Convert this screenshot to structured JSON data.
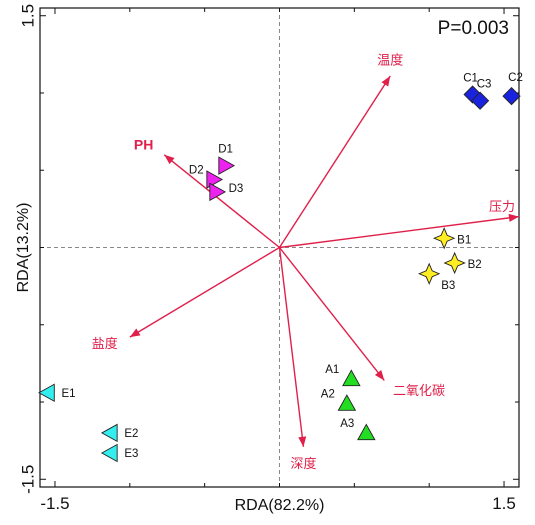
{
  "chart_data": {
    "type": "scatter",
    "title": "",
    "annotation": "P=0.003",
    "xlabel": "RDA(82.2%)",
    "ylabel": "RDA(13.2%)",
    "xlim": [
      -1.6,
      1.6
    ],
    "ylim": [
      -1.55,
      1.55
    ],
    "x_ticks": [
      {
        "value": -1.5,
        "label": "-1.5"
      },
      {
        "value": 1.5,
        "label": "1.5"
      }
    ],
    "y_ticks": [
      {
        "value": 1.5,
        "label": "1.5"
      },
      {
        "value": -1.5,
        "label": "-1.5"
      }
    ],
    "grid": false,
    "zero_lines": true,
    "arrow_color": "#e0204a",
    "env_arrows": [
      {
        "name": "温度",
        "x": 0.74,
        "y": 1.11
      },
      {
        "name": "PH",
        "x": -0.77,
        "y": 0.6
      },
      {
        "name": "压力",
        "x": 1.6,
        "y": 0.2
      },
      {
        "name": "盐度",
        "x": -1.0,
        "y": -0.58
      },
      {
        "name": "二氧化碳",
        "x": 0.7,
        "y": -0.86
      },
      {
        "name": "深度",
        "x": 0.16,
        "y": -1.29
      }
    ],
    "groups": [
      {
        "name": "A",
        "marker": "triangle-up",
        "color": "#22dd22",
        "points": [
          {
            "label": "A1",
            "x": 0.48,
            "y": -0.85
          },
          {
            "label": "A2",
            "x": 0.45,
            "y": -1.01
          },
          {
            "label": "A3",
            "x": 0.58,
            "y": -1.2
          }
        ]
      },
      {
        "name": "B",
        "marker": "star4",
        "color": "#ffee22",
        "points": [
          {
            "label": "B1",
            "x": 1.1,
            "y": 0.06
          },
          {
            "label": "B2",
            "x": 1.17,
            "y": -0.1
          },
          {
            "label": "B3",
            "x": 1.0,
            "y": -0.17
          }
        ]
      },
      {
        "name": "C",
        "marker": "diamond",
        "color": "#1a22dd",
        "points": [
          {
            "label": "C1",
            "x": 1.29,
            "y": 0.99
          },
          {
            "label": "C2",
            "x": 1.55,
            "y": 0.98
          },
          {
            "label": "C3",
            "x": 1.34,
            "y": 0.95
          }
        ]
      },
      {
        "name": "D",
        "marker": "triangle-right",
        "color": "#ee22ee",
        "points": [
          {
            "label": "D1",
            "x": -0.36,
            "y": 0.53
          },
          {
            "label": "D2",
            "x": -0.44,
            "y": 0.44
          },
          {
            "label": "D3",
            "x": -0.42,
            "y": 0.36
          }
        ]
      },
      {
        "name": "E",
        "marker": "triangle-left",
        "color": "#33eeee",
        "points": [
          {
            "label": "E1",
            "x": -1.55,
            "y": -0.94
          },
          {
            "label": "E2",
            "x": -1.13,
            "y": -1.2
          },
          {
            "label": "E3",
            "x": -1.13,
            "y": -1.33
          }
        ]
      }
    ]
  }
}
